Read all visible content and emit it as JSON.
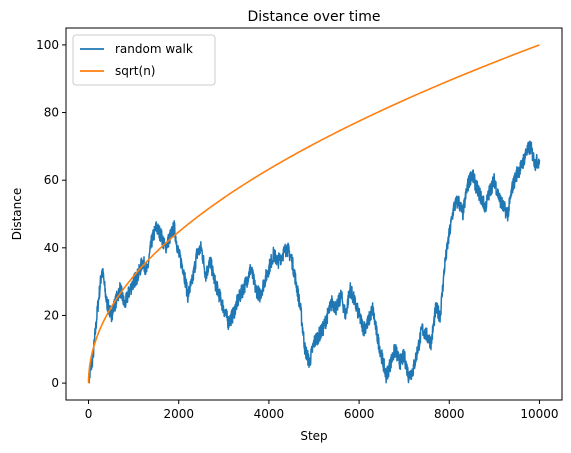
{
  "chart_data": {
    "type": "line",
    "title": "Distance over time",
    "xlabel": "Step",
    "ylabel": "Distance",
    "xlim": [
      -500,
      10500
    ],
    "ylim": [
      -5,
      105
    ],
    "xticks": [
      0,
      2000,
      4000,
      6000,
      8000,
      10000
    ],
    "yticks": [
      0,
      20,
      40,
      60,
      80,
      100
    ],
    "grid": false,
    "legend_position": "top-left",
    "series": [
      {
        "name": "random walk",
        "color": "#1f77b4",
        "x": [
          0,
          100,
          200,
          300,
          400,
          500,
          600,
          700,
          800,
          900,
          1000,
          1100,
          1200,
          1300,
          1400,
          1500,
          1600,
          1700,
          1800,
          1900,
          2000,
          2100,
          2200,
          2300,
          2400,
          2500,
          2600,
          2700,
          2800,
          2900,
          3000,
          3100,
          3200,
          3300,
          3400,
          3500,
          3600,
          3700,
          3800,
          3900,
          4000,
          4100,
          4200,
          4300,
          4400,
          4500,
          4600,
          4700,
          4800,
          4900,
          5000,
          5100,
          5200,
          5300,
          5400,
          5500,
          5600,
          5700,
          5800,
          5900,
          6000,
          6100,
          6200,
          6300,
          6400,
          6500,
          6600,
          6700,
          6800,
          6900,
          7000,
          7100,
          7200,
          7300,
          7400,
          7500,
          7600,
          7700,
          7800,
          7900,
          8000,
          8100,
          8200,
          8300,
          8400,
          8500,
          8600,
          8700,
          8800,
          8900,
          9000,
          9100,
          9200,
          9300,
          9400,
          9500,
          9600,
          9700,
          9800,
          9900,
          10000
        ],
        "values": [
          0,
          8,
          22,
          34,
          24,
          20,
          24,
          28,
          23,
          27,
          30,
          32,
          36,
          33,
          42,
          46,
          44,
          40,
          43,
          46,
          38,
          34,
          26,
          30,
          38,
          40,
          32,
          36,
          30,
          26,
          22,
          18,
          20,
          24,
          27,
          30,
          34,
          28,
          26,
          30,
          34,
          38,
          36,
          38,
          40,
          37,
          30,
          22,
          10,
          6,
          12,
          14,
          16,
          20,
          24,
          22,
          26,
          20,
          28,
          24,
          20,
          16,
          18,
          22,
          14,
          8,
          2,
          6,
          10,
          6,
          8,
          2,
          4,
          10,
          16,
          14,
          12,
          22,
          20,
          35,
          44,
          52,
          54,
          50,
          58,
          62,
          58,
          55,
          52,
          57,
          60,
          55,
          52,
          50,
          58,
          62,
          64,
          68,
          70,
          65,
          66
        ]
      },
      {
        "name": "sqrt(n)",
        "color": "#ff7f0e",
        "function": "sqrt",
        "x_range": [
          0,
          10000
        ]
      }
    ]
  }
}
